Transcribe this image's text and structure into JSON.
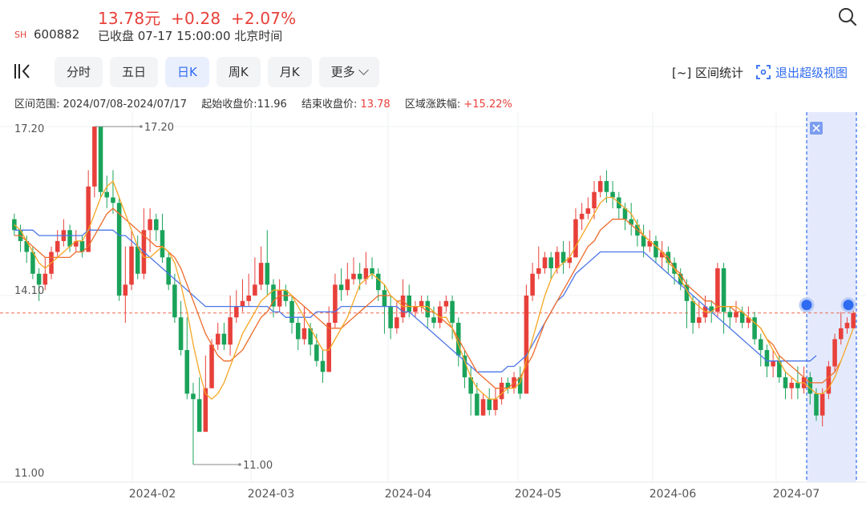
{
  "header": {
    "price": "13.78元",
    "change": "+0.28",
    "change_pct": "+2.07%",
    "exchange": "SH",
    "code": "600882",
    "status": "已收盘 07-17 15:00:00 北京时间"
  },
  "tabs": [
    {
      "label": "分时",
      "active": false
    },
    {
      "label": "五日",
      "active": false
    },
    {
      "label": "日K",
      "active": true
    },
    {
      "label": "周K",
      "active": false
    },
    {
      "label": "月K",
      "active": false
    },
    {
      "label": "更多",
      "active": false
    }
  ],
  "toolbar": {
    "range_stats_label": "[~] 区间统计",
    "exit_super_label": "退出超级视图"
  },
  "info": {
    "range_label": "区间范围: 2024/07/08-2024/07/17",
    "start_close_label": "起始收盘价:",
    "start_close": "11.96",
    "end_close_label": "结束收盘价:",
    "end_close": "13.78",
    "change_label": "区域涨跌幅:",
    "change_value": "+15.22%"
  },
  "colors": {
    "up": "#e8403a",
    "down": "#1aa35a",
    "ma5": "#f5a623",
    "ma10": "#ef6b2a",
    "ma20": "#4a76e8",
    "accent": "#2f6bf0",
    "selection": "#dfe6fb"
  },
  "chart_data": {
    "type": "candlestick",
    "ylim": [
      11.0,
      17.2
    ],
    "y_ticks": [
      "17.20",
      "14.10",
      "11.00"
    ],
    "x_ticks": [
      "2024-02",
      "2024-03",
      "2024-04",
      "2024-05",
      "2024-06",
      "2024-07"
    ],
    "max_label": "17.20",
    "min_label": "11.00",
    "reference_price": 13.78,
    "selected_range": [
      "2024-07-08",
      "2024-07-17"
    ],
    "candles": [
      [
        15.5,
        15.3,
        15.6,
        15.2
      ],
      [
        15.3,
        15.1,
        15.4,
        14.9
      ],
      [
        15.1,
        14.9,
        15.2,
        14.7
      ],
      [
        14.9,
        14.5,
        15.0,
        14.4
      ],
      [
        14.5,
        14.3,
        14.6,
        14.0
      ],
      [
        14.3,
        14.5,
        14.8,
        14.2
      ],
      [
        14.5,
        14.9,
        15.0,
        14.4
      ],
      [
        14.9,
        15.1,
        15.3,
        14.8
      ],
      [
        15.1,
        15.3,
        15.5,
        15.0
      ],
      [
        15.3,
        15.0,
        15.4,
        14.9
      ],
      [
        15.0,
        15.1,
        15.3,
        14.9
      ],
      [
        15.1,
        14.9,
        15.2,
        14.8
      ],
      [
        14.9,
        16.1,
        16.4,
        14.9
      ],
      [
        16.1,
        17.2,
        17.2,
        15.9
      ],
      [
        17.2,
        16.0,
        17.2,
        15.9
      ],
      [
        16.0,
        15.9,
        16.3,
        15.7
      ],
      [
        15.9,
        15.8,
        16.4,
        15.6
      ],
      [
        15.8,
        14.1,
        15.9,
        14.0
      ],
      [
        14.1,
        14.3,
        15.0,
        13.6
      ],
      [
        14.3,
        15.0,
        15.3,
        14.2
      ],
      [
        15.0,
        14.5,
        15.2,
        14.4
      ],
      [
        14.5,
        15.3,
        15.7,
        14.4
      ],
      [
        15.3,
        15.5,
        15.7,
        14.9
      ],
      [
        15.5,
        15.3,
        15.6,
        15.1
      ],
      [
        15.3,
        14.8,
        15.6,
        14.7
      ],
      [
        14.8,
        14.3,
        14.9,
        14.2
      ],
      [
        14.3,
        13.7,
        14.5,
        13.6
      ],
      [
        13.7,
        13.1,
        14.0,
        13.0
      ],
      [
        13.1,
        12.3,
        13.7,
        12.2
      ],
      [
        12.3,
        12.2,
        12.5,
        11.0
      ],
      [
        12.2,
        11.6,
        12.6,
        11.6
      ],
      [
        11.6,
        12.4,
        13.0,
        11.6
      ],
      [
        12.4,
        13.2,
        13.3,
        12.4
      ],
      [
        13.2,
        13.4,
        13.6,
        13.1
      ],
      [
        13.4,
        13.2,
        13.6,
        13.1
      ],
      [
        13.2,
        13.7,
        14.1,
        13.0
      ],
      [
        13.7,
        13.9,
        14.2,
        13.6
      ],
      [
        13.9,
        14.0,
        14.4,
        13.8
      ],
      [
        14.0,
        14.1,
        14.5,
        13.9
      ],
      [
        14.1,
        14.3,
        14.8,
        14.1
      ],
      [
        14.3,
        14.7,
        15.0,
        14.2
      ],
      [
        14.7,
        14.3,
        15.3,
        14.1
      ],
      [
        14.3,
        13.9,
        14.4,
        13.7
      ],
      [
        13.9,
        14.2,
        14.4,
        13.8
      ],
      [
        14.2,
        14.0,
        14.3,
        13.9
      ],
      [
        14.0,
        13.6,
        14.1,
        13.4
      ],
      [
        13.6,
        13.3,
        13.7,
        13.1
      ],
      [
        13.3,
        13.5,
        13.9,
        13.2
      ],
      [
        13.5,
        13.2,
        13.6,
        13.0
      ],
      [
        13.2,
        12.9,
        13.4,
        12.8
      ],
      [
        12.9,
        12.7,
        13.1,
        12.5
      ],
      [
        12.7,
        13.6,
        13.9,
        12.7
      ],
      [
        13.6,
        14.3,
        14.5,
        13.5
      ],
      [
        14.3,
        14.2,
        14.6,
        14.0
      ],
      [
        14.2,
        14.4,
        14.7,
        14.1
      ],
      [
        14.4,
        14.5,
        14.8,
        14.3
      ],
      [
        14.5,
        14.4,
        14.7,
        14.2
      ],
      [
        14.4,
        14.6,
        14.9,
        14.3
      ],
      [
        14.6,
        14.5,
        14.8,
        14.4
      ],
      [
        14.5,
        14.2,
        14.6,
        14.0
      ],
      [
        14.2,
        13.9,
        14.3,
        13.4
      ],
      [
        13.9,
        13.5,
        14.1,
        13.3
      ],
      [
        13.5,
        13.7,
        14.0,
        13.4
      ],
      [
        13.7,
        14.1,
        14.4,
        13.6
      ],
      [
        14.1,
        13.8,
        14.3,
        13.7
      ],
      [
        13.8,
        13.9,
        14.0,
        13.7
      ],
      [
        13.9,
        14.0,
        14.1,
        13.8
      ],
      [
        14.0,
        13.7,
        14.1,
        13.5
      ],
      [
        13.7,
        13.6,
        13.9,
        13.5
      ],
      [
        13.6,
        13.9,
        14.0,
        13.5
      ],
      [
        13.9,
        14.0,
        14.1,
        13.8
      ],
      [
        14.0,
        13.6,
        14.1,
        13.3
      ],
      [
        13.6,
        13.0,
        13.7,
        12.8
      ],
      [
        13.0,
        12.6,
        13.1,
        12.4
      ],
      [
        12.6,
        12.3,
        12.8,
        11.9
      ],
      [
        12.3,
        11.9,
        12.5,
        11.9
      ],
      [
        11.9,
        12.2,
        12.3,
        11.9
      ],
      [
        12.2,
        12.0,
        12.4,
        11.9
      ],
      [
        12.0,
        12.2,
        12.4,
        11.9
      ],
      [
        12.2,
        12.5,
        12.6,
        12.1
      ],
      [
        12.5,
        12.4,
        12.6,
        12.3
      ],
      [
        12.4,
        12.6,
        12.7,
        12.3
      ],
      [
        12.6,
        12.3,
        12.8,
        12.2
      ],
      [
        12.3,
        14.1,
        14.3,
        12.3
      ],
      [
        14.1,
        14.5,
        14.7,
        14.0
      ],
      [
        14.5,
        14.6,
        15.0,
        14.4
      ],
      [
        14.6,
        14.8,
        14.9,
        14.5
      ],
      [
        14.8,
        14.6,
        14.9,
        14.4
      ],
      [
        14.6,
        14.9,
        15.0,
        14.5
      ],
      [
        14.9,
        14.7,
        15.1,
        14.5
      ],
      [
        14.7,
        14.8,
        15.1,
        14.6
      ],
      [
        14.8,
        15.5,
        15.7,
        14.8
      ],
      [
        15.5,
        15.6,
        15.8,
        15.3
      ],
      [
        15.6,
        15.7,
        15.9,
        15.5
      ],
      [
        15.7,
        16.0,
        16.2,
        15.5
      ],
      [
        16.0,
        16.2,
        16.3,
        15.9
      ],
      [
        16.2,
        16.0,
        16.4,
        15.8
      ],
      [
        16.0,
        15.9,
        16.2,
        15.7
      ],
      [
        15.9,
        15.7,
        16.0,
        15.5
      ],
      [
        15.7,
        15.5,
        15.8,
        15.3
      ],
      [
        15.5,
        15.4,
        15.8,
        15.2
      ],
      [
        15.4,
        15.2,
        15.5,
        15.0
      ],
      [
        15.2,
        15.0,
        15.4,
        14.8
      ],
      [
        15.0,
        15.1,
        15.3,
        14.9
      ],
      [
        15.1,
        14.8,
        15.2,
        14.7
      ],
      [
        14.8,
        14.9,
        15.1,
        14.6
      ],
      [
        14.9,
        14.7,
        15.0,
        14.5
      ],
      [
        14.7,
        14.5,
        14.8,
        14.3
      ],
      [
        14.5,
        14.3,
        14.6,
        14.2
      ],
      [
        14.3,
        14.0,
        14.4,
        13.5
      ],
      [
        14.0,
        13.6,
        14.1,
        13.4
      ],
      [
        13.6,
        13.7,
        14.0,
        13.5
      ],
      [
        13.7,
        13.9,
        14.1,
        13.6
      ],
      [
        13.9,
        13.8,
        14.0,
        13.6
      ],
      [
        13.8,
        14.6,
        14.7,
        13.7
      ],
      [
        14.6,
        13.8,
        14.7,
        13.4
      ],
      [
        13.8,
        13.7,
        13.9,
        13.5
      ],
      [
        13.7,
        13.8,
        14.0,
        13.6
      ],
      [
        13.8,
        13.6,
        13.9,
        13.5
      ],
      [
        13.6,
        13.7,
        13.9,
        13.5
      ],
      [
        13.7,
        13.3,
        13.8,
        13.2
      ],
      [
        13.3,
        13.1,
        13.4,
        12.8
      ],
      [
        13.1,
        12.8,
        13.2,
        12.6
      ],
      [
        12.8,
        12.9,
        13.1,
        12.6
      ],
      [
        12.9,
        12.6,
        13.0,
        12.5
      ],
      [
        12.6,
        12.4,
        12.7,
        12.2
      ],
      [
        12.4,
        12.5,
        12.6,
        12.2
      ],
      [
        12.5,
        12.4,
        12.8,
        12.2
      ],
      [
        12.4,
        12.6,
        12.8,
        12.3
      ],
      [
        12.6,
        12.3,
        12.7,
        12.1
      ],
      [
        12.3,
        11.9,
        12.4,
        11.8
      ],
      [
        11.9,
        12.3,
        12.4,
        11.7
      ],
      [
        12.3,
        12.8,
        12.9,
        12.2
      ],
      [
        12.8,
        13.3,
        13.4,
        12.7
      ],
      [
        13.3,
        13.5,
        13.8,
        13.2
      ],
      [
        13.5,
        13.6,
        13.7,
        13.4
      ],
      [
        13.5,
        13.78,
        14.0,
        13.5
      ]
    ],
    "ma5": [
      15.4,
      15.3,
      15.1,
      14.9,
      14.7,
      14.6,
      14.7,
      14.8,
      14.9,
      15.0,
      15.1,
      15.1,
      15.3,
      15.6,
      15.9,
      16.1,
      16.2,
      15.9,
      15.6,
      15.3,
      15.0,
      14.8,
      14.8,
      14.9,
      15.0,
      14.9,
      14.7,
      14.3,
      13.8,
      13.2,
      12.7,
      12.3,
      12.2,
      12.3,
      12.5,
      12.8,
      13.1,
      13.4,
      13.6,
      13.8,
      14.0,
      14.1,
      14.2,
      14.2,
      14.2,
      14.1,
      13.9,
      13.7,
      13.5,
      13.3,
      13.1,
      13.1,
      13.3,
      13.5,
      13.7,
      14.0,
      14.3,
      14.4,
      14.5,
      14.4,
      14.3,
      14.1,
      14.0,
      13.9,
      13.9,
      13.9,
      13.9,
      13.9,
      13.8,
      13.7,
      13.7,
      13.5,
      13.2,
      12.9,
      12.6,
      12.4,
      12.3,
      12.2,
      12.2,
      12.3,
      12.4,
      12.4,
      12.5,
      12.9,
      13.3,
      13.7,
      14.1,
      14.4,
      14.6,
      14.7,
      14.8,
      15.0,
      15.2,
      15.4,
      15.6,
      15.8,
      15.9,
      15.9,
      15.8,
      15.7,
      15.6,
      15.4,
      15.2,
      15.1,
      15.0,
      14.9,
      14.7,
      14.6,
      14.4,
      14.2,
      14.0,
      13.9,
      13.8,
      13.8,
      13.9,
      13.9,
      13.9,
      13.9,
      13.8,
      13.7,
      13.6,
      13.5,
      13.3,
      13.1,
      12.9,
      12.7,
      12.6,
      12.5,
      12.5,
      12.4,
      12.3,
      12.3,
      12.4,
      12.6,
      12.9,
      13.2,
      13.5
    ],
    "ma10": [
      15.2,
      15.2,
      15.1,
      15.0,
      14.9,
      14.8,
      14.8,
      14.8,
      14.8,
      14.8,
      14.9,
      14.9,
      15.0,
      15.2,
      15.4,
      15.6,
      15.7,
      15.6,
      15.5,
      15.4,
      15.3,
      15.2,
      15.1,
      15.0,
      15.0,
      14.9,
      14.8,
      14.6,
      14.3,
      14.0,
      13.7,
      13.4,
      13.2,
      13.0,
      12.9,
      12.9,
      13.0,
      13.1,
      13.3,
      13.5,
      13.7,
      13.8,
      14.0,
      14.1,
      14.1,
      14.1,
      14.0,
      13.9,
      13.8,
      13.7,
      13.6,
      13.5,
      13.5,
      13.5,
      13.6,
      13.7,
      13.8,
      13.9,
      14.0,
      14.1,
      14.1,
      14.1,
      14.0,
      14.0,
      13.9,
      13.9,
      13.9,
      13.8,
      13.8,
      13.7,
      13.6,
      13.5,
      13.3,
      13.1,
      12.9,
      12.7,
      12.6,
      12.5,
      12.4,
      12.4,
      12.4,
      12.5,
      12.6,
      12.8,
      13.0,
      13.3,
      13.6,
      13.8,
      14.0,
      14.2,
      14.4,
      14.6,
      14.8,
      15.0,
      15.1,
      15.3,
      15.4,
      15.5,
      15.5,
      15.5,
      15.4,
      15.3,
      15.2,
      15.1,
      15.0,
      14.9,
      14.8,
      14.6,
      14.5,
      14.3,
      14.2,
      14.1,
      14.0,
      14.0,
      13.9,
      13.9,
      13.9,
      13.8,
      13.8,
      13.7,
      13.6,
      13.5,
      13.3,
      13.2,
      13.0,
      12.9,
      12.8,
      12.7,
      12.6,
      12.5,
      12.5,
      12.5,
      12.6,
      12.7,
      12.9
    ],
    "ma20": [
      15.3,
      15.3,
      15.3,
      15.3,
      15.2,
      15.2,
      15.2,
      15.2,
      15.2,
      15.2,
      15.2,
      15.2,
      15.3,
      15.3,
      15.3,
      15.3,
      15.3,
      15.2,
      15.2,
      15.1,
      15.0,
      14.9,
      14.8,
      14.7,
      14.6,
      14.5,
      14.4,
      14.3,
      14.2,
      14.1,
      14.0,
      13.9,
      13.9,
      13.9,
      13.9,
      13.9,
      13.9,
      13.9,
      13.9,
      13.9,
      13.9,
      13.9,
      13.8,
      13.8,
      13.7,
      13.7,
      13.7,
      13.7,
      13.7,
      13.8,
      13.8,
      13.8,
      13.8,
      13.9,
      13.9,
      13.9,
      13.9,
      13.9,
      13.9,
      13.9,
      13.9,
      13.9,
      13.9,
      13.8,
      13.8,
      13.7,
      13.6,
      13.5,
      13.4,
      13.3,
      13.2,
      13.1,
      13.0,
      12.9,
      12.8,
      12.7,
      12.7,
      12.7,
      12.7,
      12.7,
      12.8,
      12.8,
      12.9,
      13.0,
      13.2,
      13.4,
      13.6,
      13.8,
      14.0,
      14.1,
      14.3,
      14.5,
      14.6,
      14.7,
      14.8,
      14.9,
      14.9,
      14.9,
      14.9,
      14.9,
      14.9,
      14.9,
      14.9,
      14.8,
      14.7,
      14.6,
      14.5,
      14.4,
      14.3,
      14.2,
      14.1,
      14.0,
      13.9,
      13.8,
      13.7,
      13.6,
      13.5,
      13.4,
      13.3,
      13.2,
      13.1,
      13.0,
      12.9,
      12.9,
      12.9,
      12.9,
      12.9,
      12.9,
      12.9,
      12.9,
      13.0
    ]
  }
}
